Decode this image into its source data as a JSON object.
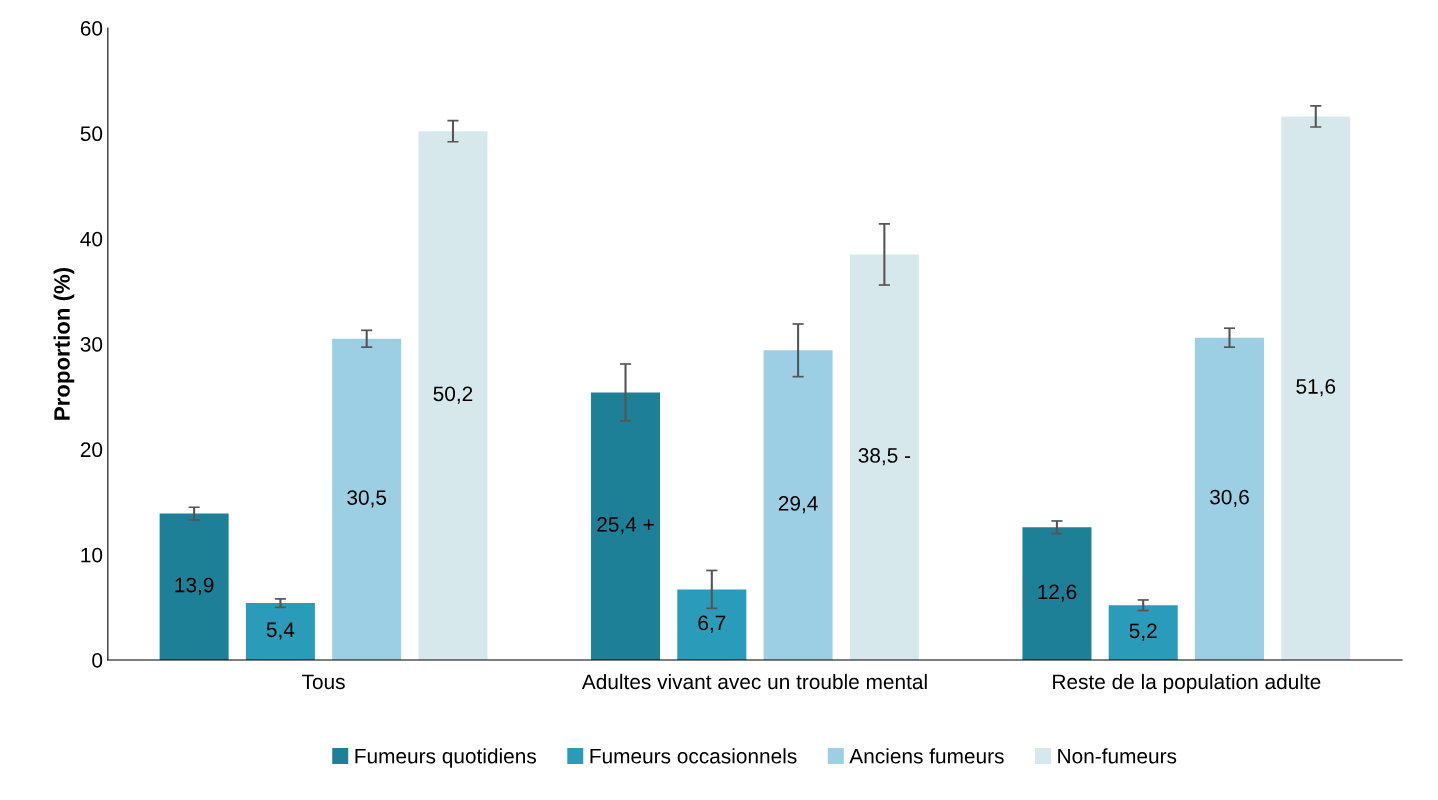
{
  "chart_data": {
    "type": "bar",
    "ylabel": "Proportion (%)",
    "categories": [
      "Tous",
      "Adultes vivant avec un trouble mental",
      "Reste de la population adulte"
    ],
    "ylim": [
      0,
      60
    ],
    "yticks": [
      0,
      10,
      20,
      30,
      40,
      50,
      60
    ],
    "grid": false,
    "legend": "bottom",
    "series": [
      {
        "name": "Fumeurs quotidiens",
        "color": "#1d8096",
        "values": [
          13.9,
          25.4,
          12.6
        ],
        "errors": [
          0.6,
          2.7,
          0.6
        ],
        "value_labels": [
          "13,9",
          "25,4 +",
          "12,6"
        ]
      },
      {
        "name": "Fumeurs occasionnels",
        "color": "#2a9bb8",
        "values": [
          5.4,
          6.7,
          5.2
        ],
        "errors": [
          0.4,
          1.8,
          0.5
        ],
        "value_labels": [
          "5,4",
          "6,7",
          "5,2"
        ]
      },
      {
        "name": "Anciens fumeurs",
        "color": "#9ccfe3",
        "values": [
          30.5,
          29.4,
          30.6
        ],
        "errors": [
          0.8,
          2.5,
          0.9
        ],
        "value_labels": [
          "30,5",
          "29,4",
          "30,6"
        ]
      },
      {
        "name": "Non-fumeurs",
        "color": "#d7e8ec",
        "values": [
          50.2,
          38.5,
          51.6
        ],
        "errors": [
          1.0,
          2.9,
          1.0
        ],
        "value_labels": [
          "50,2",
          "38,5 -",
          "51,6"
        ]
      }
    ]
  }
}
